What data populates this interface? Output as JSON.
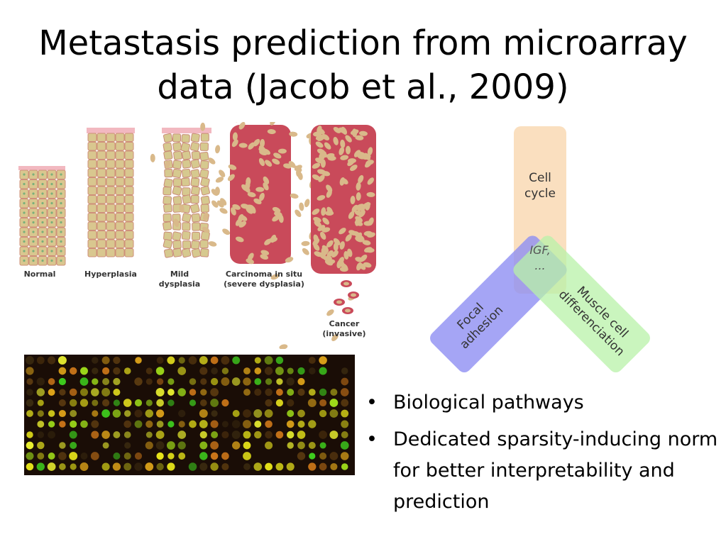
{
  "slide": {
    "title_line1": "Metastasis prediction from microarray",
    "title_line2": "data (Jacob et al., 2009)"
  },
  "tissue_stages": [
    {
      "line1": "Normal",
      "line2": ""
    },
    {
      "line1": "Hyperplasia",
      "line2": ""
    },
    {
      "line1": "Mild",
      "line2": "dysplasia"
    },
    {
      "line1": "Carcinoma in situ",
      "line2": "(severe dysplasia)"
    },
    {
      "line1": "Cancer",
      "line2": "(invasive)"
    }
  ],
  "pathway_diagram": {
    "top_label_line1": "Cell",
    "top_label_line2": "cycle",
    "center_label_line1": "IGF,",
    "center_label_line2": "...",
    "left_label_line1": "Focal",
    "left_label_line2": "adhesion",
    "right_label_line1": "Muscle cell",
    "right_label_line2": "differenciation",
    "colors": {
      "top": "#f9d9b4",
      "left": "#8f8ff2",
      "right": "#b8f2a8"
    }
  },
  "bullets": [
    "Biological pathways",
    "Dedicated sparsity-inducing norm for better interpretability and prediction"
  ]
}
